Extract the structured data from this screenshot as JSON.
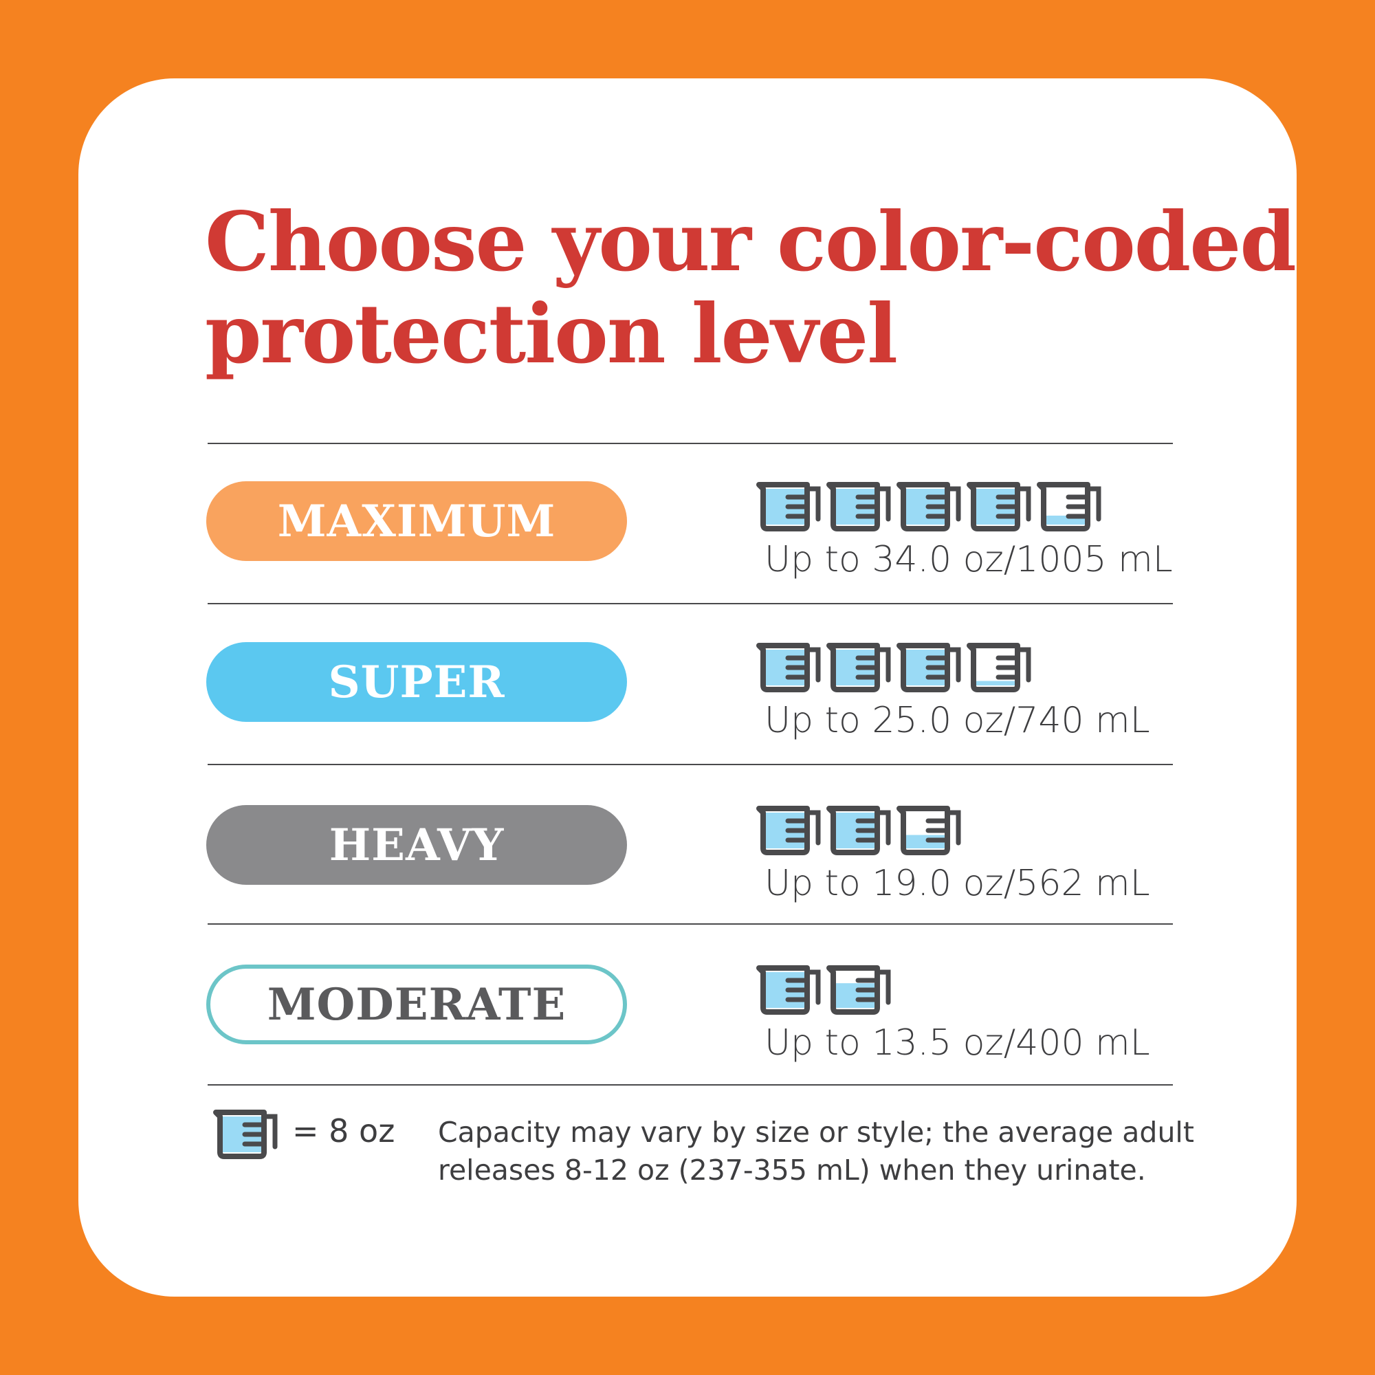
{
  "colors": {
    "background": "#F58220",
    "title": "#D03A34",
    "cup_fill": "#9ADAF5",
    "cup_outline": "#4A4A4C"
  },
  "title_line1": "Choose your color-coded",
  "title_line2": "protection level",
  "levels": [
    {
      "label": "MAXIMUM",
      "color": "#F9A35E",
      "style": "filled",
      "capacity": "Up to 34.0 oz/1005 mL",
      "cups": [
        1,
        1,
        1,
        1,
        0.25
      ]
    },
    {
      "label": "SUPER",
      "color": "#5BC8F0",
      "style": "filled",
      "capacity": "Up to 25.0 oz/740 mL",
      "cups": [
        1,
        1,
        1,
        0.125
      ]
    },
    {
      "label": "HEAVY",
      "color": "#8A8A8C",
      "style": "filled",
      "capacity": "Up to 19.0 oz/562 mL",
      "cups": [
        1,
        1,
        0.375
      ]
    },
    {
      "label": "MODERATE",
      "color": "#6CC5C8",
      "style": "outline",
      "capacity": "Up to 13.5 oz/400 mL",
      "cups": [
        1,
        0.69
      ]
    }
  ],
  "legend": {
    "icon": "measuring-cup-icon",
    "text": "= 8 oz"
  },
  "note_line1": "Capacity may vary by size or style; the average adult",
  "note_line2": "releases 8-12 oz (237-355 mL) when they urinate."
}
